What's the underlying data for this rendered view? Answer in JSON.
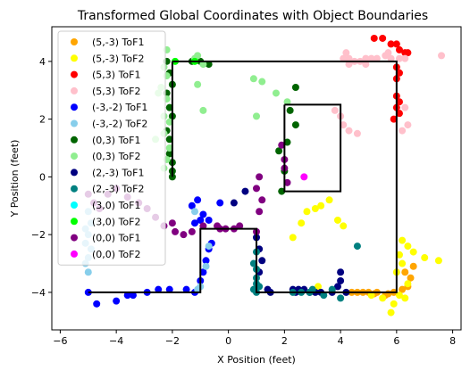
{
  "chart_data": {
    "type": "scatter",
    "title": "Transformed Global Coordinates with Object Boundaries",
    "xlabel": "X Position (feet)",
    "ylabel": "Y Position (feet)",
    "xlim": [
      -6.3,
      8.3
    ],
    "ylim": [
      -5.3,
      5.2
    ],
    "xticks": [
      -6,
      -4,
      -2,
      0,
      2,
      4,
      6,
      8
    ],
    "yticks": [
      -4,
      -2,
      0,
      2,
      4
    ],
    "grid": false,
    "legend_position": "upper-left",
    "boundaries": [
      [
        [
          -2,
          4
        ],
        [
          6,
          4
        ],
        [
          6,
          -4
        ],
        [
          1,
          -4
        ],
        [
          1,
          -1.8
        ],
        [
          -1,
          -1.8
        ],
        [
          -1,
          -4
        ],
        [
          -5,
          -4
        ]
      ],
      [
        [
          -2,
          4
        ],
        [
          -2,
          0
        ]
      ],
      [
        [
          2,
          2.5
        ],
        [
          4,
          2.5
        ],
        [
          4,
          -0.5
        ],
        [
          2,
          -0.5
        ],
        [
          2,
          2.5
        ]
      ]
    ],
    "series": [
      {
        "name": "(5,-3) ToF1",
        "color": "#FFA500",
        "points": [
          [
            5.0,
            -4.0
          ],
          [
            5.3,
            -4.0
          ],
          [
            5.6,
            -4.1
          ],
          [
            5.9,
            -4.0
          ],
          [
            6.2,
            -3.9
          ],
          [
            6.4,
            -3.8
          ],
          [
            6.5,
            -3.5
          ],
          [
            6.3,
            -3.3
          ],
          [
            4.6,
            -4.0
          ],
          [
            4.8,
            -4.0
          ],
          [
            6.6,
            -3.1
          ],
          [
            4.4,
            -4.0
          ],
          [
            5.2,
            -4.05
          ],
          [
            5.7,
            -4.05
          ]
        ]
      },
      {
        "name": "(5,-3) ToF2",
        "color": "#FFFF00",
        "points": [
          [
            2.3,
            -2.1
          ],
          [
            2.6,
            -1.6
          ],
          [
            2.8,
            -1.2
          ],
          [
            3.1,
            -1.1
          ],
          [
            3.3,
            -1.0
          ],
          [
            3.6,
            -0.8
          ],
          [
            3.9,
            -1.5
          ],
          [
            4.1,
            -1.7
          ],
          [
            6.2,
            -2.2
          ],
          [
            6.4,
            -2.4
          ],
          [
            6.1,
            -2.7
          ],
          [
            6.2,
            -3.0
          ],
          [
            6.0,
            -3.3
          ],
          [
            6.4,
            -3.7
          ],
          [
            6.1,
            -4.1
          ],
          [
            5.9,
            -4.4
          ],
          [
            5.8,
            -4.7
          ],
          [
            6.6,
            -2.6
          ],
          [
            7.0,
            -2.8
          ],
          [
            7.5,
            -2.9
          ],
          [
            3.2,
            -3.8
          ],
          [
            5.5,
            -4.2
          ],
          [
            6.3,
            -4.2
          ],
          [
            5.1,
            -4.1
          ]
        ]
      },
      {
        "name": "(5,3) ToF1",
        "color": "#FF0000",
        "points": [
          [
            5.2,
            4.8
          ],
          [
            5.5,
            4.8
          ],
          [
            5.8,
            4.6
          ],
          [
            6.0,
            4.6
          ],
          [
            6.1,
            4.4
          ],
          [
            6.3,
            4.3
          ],
          [
            6.4,
            4.3
          ],
          [
            6.0,
            3.8
          ],
          [
            6.1,
            3.6
          ],
          [
            6.0,
            3.4
          ],
          [
            6.0,
            2.8
          ],
          [
            6.1,
            2.6
          ],
          [
            6.0,
            2.4
          ],
          [
            6.1,
            2.2
          ],
          [
            5.9,
            2.0
          ]
        ]
      },
      {
        "name": "(5,3) ToF2",
        "color": "#FFC0CB",
        "points": [
          [
            4.3,
            4.1
          ],
          [
            4.5,
            4.0
          ],
          [
            4.7,
            4.0
          ],
          [
            4.9,
            4.1
          ],
          [
            5.1,
            4.1
          ],
          [
            5.3,
            4.1
          ],
          [
            5.6,
            4.2
          ],
          [
            5.8,
            4.1
          ],
          [
            6.1,
            4.1
          ],
          [
            6.3,
            4.1
          ],
          [
            7.6,
            4.2
          ],
          [
            4.3,
            3.9
          ],
          [
            4.1,
            4.1
          ],
          [
            4.9,
            3.9
          ],
          [
            4.0,
            2.1
          ],
          [
            3.8,
            2.3
          ],
          [
            4.1,
            1.8
          ],
          [
            4.3,
            1.6
          ],
          [
            4.6,
            1.5
          ],
          [
            6.3,
            2.4
          ],
          [
            6.4,
            1.8
          ],
          [
            6.2,
            1.6
          ],
          [
            5.7,
            4.3
          ],
          [
            4.2,
            4.3
          ]
        ]
      },
      {
        "name": "(-3,-2) ToF1",
        "color": "#0000FF",
        "points": [
          [
            -5.0,
            -4.0
          ],
          [
            -4.7,
            -4.4
          ],
          [
            -4.0,
            -4.3
          ],
          [
            -3.6,
            -4.1
          ],
          [
            -3.4,
            -4.1
          ],
          [
            -2.9,
            -4.0
          ],
          [
            -2.5,
            -3.9
          ],
          [
            -2.1,
            -3.9
          ],
          [
            -1.5,
            -3.9
          ],
          [
            -1.2,
            -4.0
          ],
          [
            -1.0,
            -3.6
          ],
          [
            -0.9,
            -3.3
          ],
          [
            -0.8,
            -2.9
          ],
          [
            -0.7,
            -2.5
          ],
          [
            -0.6,
            -2.3
          ],
          [
            -0.7,
            -1.5
          ],
          [
            -0.3,
            -0.9
          ],
          [
            -0.9,
            -1.3
          ],
          [
            -1.0,
            -1.5
          ],
          [
            -1.2,
            -1.6
          ],
          [
            -1.3,
            -1.0
          ],
          [
            -1.1,
            -0.8
          ]
        ]
      },
      {
        "name": "(-3,-2) ToF2",
        "color": "#87CEEB",
        "points": [
          [
            -5.0,
            -3.3
          ],
          [
            -5.1,
            -3.0
          ],
          [
            -5.0,
            -2.8
          ],
          [
            -4.9,
            -2.5
          ],
          [
            -5.1,
            -2.3
          ],
          [
            -5.0,
            -2.0
          ],
          [
            -5.1,
            -1.8
          ],
          [
            -4.9,
            -1.6
          ],
          [
            -5.0,
            -1.2
          ],
          [
            -1.2,
            -1.2
          ],
          [
            -1.1,
            -3.9
          ],
          [
            -0.7,
            -2.4
          ],
          [
            -0.8,
            -3.1
          ],
          [
            -1.0,
            -3.8
          ]
        ]
      },
      {
        "name": "(0,3) ToF1",
        "color": "#006400",
        "points": [
          [
            -2.2,
            4.0
          ],
          [
            -2.1,
            3.6
          ],
          [
            -2.0,
            3.2
          ],
          [
            -2.2,
            2.9
          ],
          [
            -2.1,
            2.4
          ],
          [
            -2.0,
            2.1
          ],
          [
            -2.2,
            1.6
          ],
          [
            -2.1,
            1.3
          ],
          [
            -2.1,
            0.8
          ],
          [
            -2.0,
            0.5
          ],
          [
            -2.0,
            0.2
          ],
          [
            -2.0,
            0.0
          ],
          [
            -1.3,
            4.0
          ],
          [
            -1.0,
            4.0
          ],
          [
            -0.7,
            3.9
          ],
          [
            2.4,
            3.1
          ],
          [
            2.2,
            2.3
          ],
          [
            2.4,
            1.8
          ],
          [
            1.9,
            -0.5
          ],
          [
            1.8,
            0.9
          ],
          [
            2.1,
            1.2
          ],
          [
            2.0,
            0.2
          ]
        ]
      },
      {
        "name": "(0,3) ToF2",
        "color": "#90EE90",
        "points": [
          [
            -2.3,
            3.8
          ],
          [
            -2.2,
            3.5
          ],
          [
            -2.4,
            3.1
          ],
          [
            -2.2,
            2.7
          ],
          [
            -2.3,
            2.1
          ],
          [
            -2.1,
            1.9
          ],
          [
            -2.3,
            1.5
          ],
          [
            -2.1,
            1.0
          ],
          [
            -2.2,
            0.6
          ],
          [
            -2.3,
            0.3
          ],
          [
            -1.2,
            4.1
          ],
          [
            -1.1,
            4.2
          ],
          [
            -0.9,
            3.9
          ],
          [
            0.9,
            3.4
          ],
          [
            1.2,
            3.3
          ],
          [
            1.7,
            2.9
          ],
          [
            2.1,
            2.6
          ],
          [
            1.0,
            2.1
          ],
          [
            -0.9,
            2.3
          ],
          [
            -1.1,
            3.2
          ],
          [
            -2.2,
            4.4
          ],
          [
            -2.5,
            2.9
          ],
          [
            -2.6,
            1.3
          ]
        ]
      },
      {
        "name": "(2,-3) ToF1",
        "color": "#000080",
        "points": [
          [
            0.6,
            -0.5
          ],
          [
            0.2,
            -0.9
          ],
          [
            1.0,
            -2.1
          ],
          [
            1.1,
            -2.5
          ],
          [
            1.2,
            -2.9
          ],
          [
            1.1,
            -3.3
          ],
          [
            1.4,
            -3.9
          ],
          [
            1.5,
            -4.0
          ],
          [
            2.3,
            -3.9
          ],
          [
            2.5,
            -3.9
          ],
          [
            2.9,
            -4.0
          ],
          [
            3.3,
            -4.0
          ],
          [
            3.9,
            -3.8
          ],
          [
            4.0,
            -3.6
          ],
          [
            4.2,
            -4.0
          ],
          [
            3.7,
            -4.0
          ],
          [
            4.0,
            -3.3
          ],
          [
            3.1,
            -4.0
          ],
          [
            2.7,
            -3.9
          ],
          [
            2.4,
            -4.0
          ]
        ]
      },
      {
        "name": "(2,-3) ToF2",
        "color": "#008080",
        "points": [
          [
            1.0,
            -2.6
          ],
          [
            0.9,
            -3.0
          ],
          [
            1.0,
            -3.2
          ],
          [
            1.0,
            -3.5
          ],
          [
            1.0,
            -3.7
          ],
          [
            0.9,
            -3.9
          ],
          [
            1.0,
            -4.0
          ],
          [
            2.3,
            -4.0
          ],
          [
            2.6,
            -4.0
          ],
          [
            3.0,
            -3.9
          ],
          [
            3.4,
            -4.1
          ],
          [
            3.7,
            -3.9
          ],
          [
            4.0,
            -4.2
          ],
          [
            4.6,
            -2.4
          ],
          [
            2.9,
            -4.0
          ],
          [
            1.1,
            -3.8
          ]
        ]
      },
      {
        "name": "(3,0) ToF1",
        "color": "#00FFFF",
        "points": []
      },
      {
        "name": "(3,0) ToF2",
        "color": "#00FF00",
        "points": [
          [
            -1.9,
            4.0
          ],
          [
            -1.2,
            4.0
          ]
        ]
      },
      {
        "name": "(0,0) ToF1",
        "color": "#800080",
        "points": [
          [
            -5.0,
            -0.6
          ],
          [
            -4.8,
            -0.9
          ],
          [
            -4.6,
            -1.1
          ],
          [
            -4.3,
            -0.6
          ],
          [
            -4.0,
            -0.4
          ],
          [
            -3.6,
            -0.7
          ],
          [
            -3.2,
            -0.9
          ],
          [
            -2.9,
            -1.1
          ],
          [
            -2.6,
            -1.4
          ],
          [
            -2.3,
            -1.7
          ],
          [
            -2.0,
            -1.6
          ],
          [
            -1.9,
            -1.9
          ],
          [
            -1.6,
            -2.0
          ],
          [
            -1.3,
            -1.9
          ],
          [
            -0.9,
            -1.7
          ],
          [
            -0.4,
            -1.7
          ],
          [
            -0.3,
            -1.8
          ],
          [
            -0.1,
            -1.8
          ],
          [
            0.2,
            -1.8
          ],
          [
            0.4,
            -1.7
          ],
          [
            1.0,
            -1.9
          ],
          [
            1.2,
            -0.8
          ],
          [
            1.0,
            -0.4
          ],
          [
            1.1,
            0.0
          ],
          [
            1.9,
            1.1
          ],
          [
            2.0,
            0.6
          ],
          [
            2.0,
            0.3
          ],
          [
            2.1,
            -0.2
          ],
          [
            1.1,
            -1.2
          ]
        ]
      },
      {
        "name": "(0,0) ToF2",
        "color": "#FF00FF",
        "points": [
          [
            2.7,
            0.0
          ]
        ]
      }
    ]
  }
}
